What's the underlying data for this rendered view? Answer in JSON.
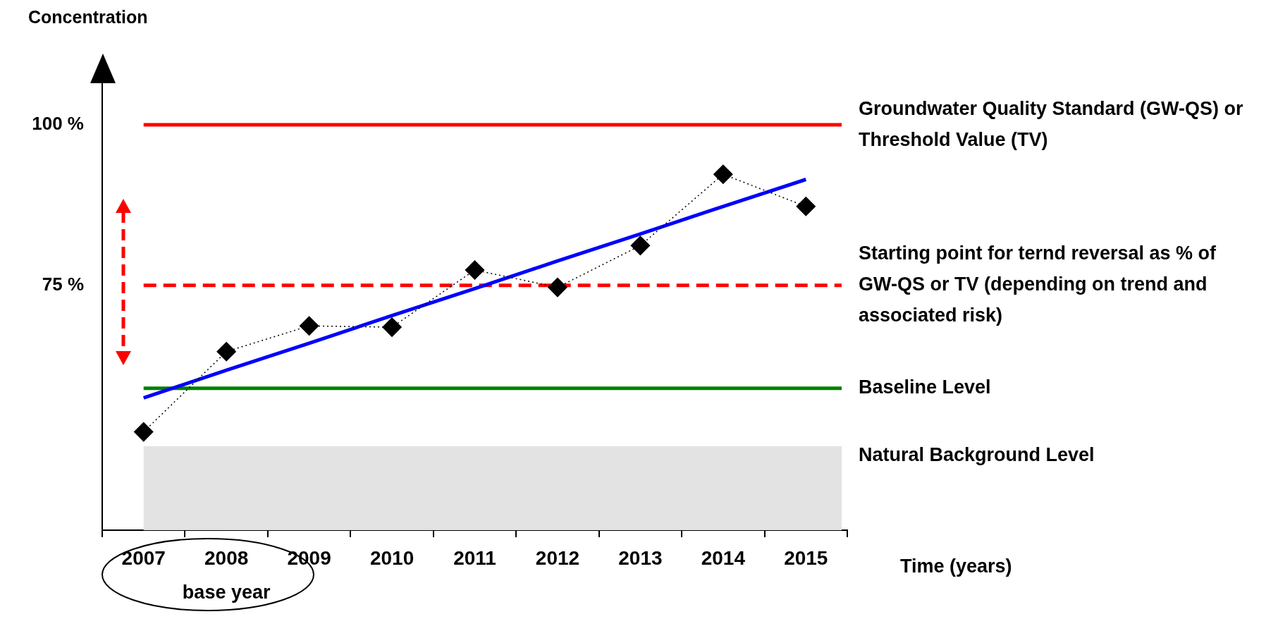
{
  "chart_data": {
    "type": "line",
    "ylabel": "Concentration",
    "xlabel": "Time (years)",
    "categories": [
      "2007",
      "2008",
      "2009",
      "2010",
      "2011",
      "2012",
      "2013",
      "2014",
      "2015"
    ],
    "series": [
      {
        "color": "#000000",
        "marker": "diamond",
        "line_style": "dotted",
        "values": [
          52.2,
          64.7,
          68.7,
          68.5,
          77.4,
          74.7,
          81.2,
          92.3,
          87.3
        ]
      },
      {
        "color": "#0000ff",
        "marker": "none",
        "line_style": "solid",
        "values": [
          57.5,
          61.8,
          66,
          70.3,
          74.5,
          78.8,
          83,
          87.3,
          91.5
        ]
      }
    ],
    "ylim": [
      36.9,
      106.7
    ],
    "yticks": [
      {
        "value": 75,
        "label": "75 %"
      },
      {
        "value": 100,
        "label": "100 %"
      }
    ],
    "ref_lines": [
      {
        "axis": "y",
        "value": 100,
        "label": "Groundwater Quality Standard (GW-QS) or Threshold Value (TV)",
        "color": "#ff0000",
        "line_style": "solid"
      },
      {
        "axis": "y",
        "value": 75,
        "label": "Starting point for ternd reversal as % of GW-QS or TV (depending on trend and associated risk)",
        "color": "#ff0000",
        "line_style": "dashed"
      },
      {
        "axis": "y",
        "value": 59,
        "label": "Baseline Level",
        "color": "#008000",
        "line_style": "solid"
      }
    ],
    "bands": [
      {
        "axis": "y",
        "from": 36.9,
        "to": 50,
        "label": "Natural Background Level",
        "color": "#e3e3e3"
      }
    ],
    "annotations": [
      "base year"
    ],
    "grid": false,
    "legend": false
  }
}
